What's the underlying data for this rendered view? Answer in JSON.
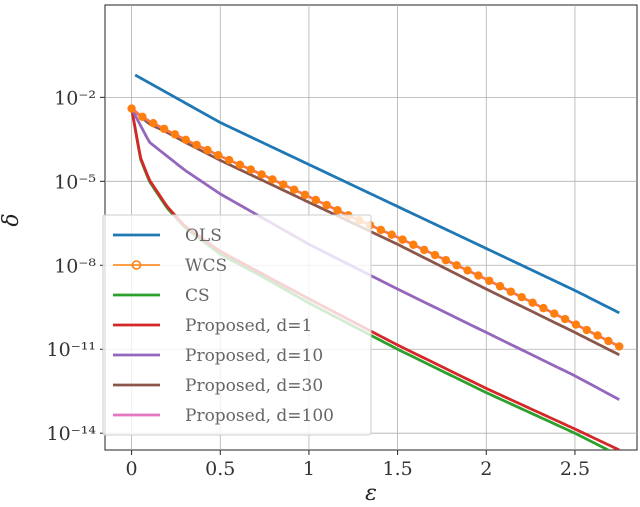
{
  "chart_data": {
    "type": "line",
    "title": "",
    "xlabel": "ε",
    "ylabel": "δ",
    "xlim": [
      -0.15,
      2.85
    ],
    "ylim_log10": [
      -14.6,
      1.3
    ],
    "yscale": "log",
    "grid": true,
    "legend_position": "lower-left",
    "x_ticks": [
      {
        "value": 0,
        "label": "0"
      },
      {
        "value": 0.5,
        "label": "0.5"
      },
      {
        "value": 1,
        "label": "1"
      },
      {
        "value": 1.5,
        "label": "1.5"
      },
      {
        "value": 2,
        "label": "2"
      },
      {
        "value": 2.5,
        "label": "2.5"
      }
    ],
    "y_ticks": [
      {
        "exp": -2,
        "label": "10⁻²"
      },
      {
        "exp": -5,
        "label": "10⁻⁵"
      },
      {
        "exp": -8,
        "label": "10⁻⁸"
      },
      {
        "exp": -11,
        "label": "10⁻¹¹"
      },
      {
        "exp": -14,
        "label": "10⁻¹⁴"
      }
    ],
    "series": [
      {
        "name": "OLS",
        "color": "#1f77b4",
        "markers": false,
        "points": [
          [
            0.02,
            -1.2
          ],
          [
            0.5,
            -2.9
          ],
          [
            1.0,
            -4.4
          ],
          [
            1.5,
            -5.9
          ],
          [
            2.0,
            -7.4
          ],
          [
            2.5,
            -8.9
          ],
          [
            2.75,
            -9.7
          ]
        ]
      },
      {
        "name": "WCS",
        "color": "#ff7f0e",
        "markers": true,
        "points": [
          [
            0.0,
            -2.4
          ],
          [
            0.05,
            -2.65
          ],
          [
            0.1,
            -2.85
          ],
          [
            0.2,
            -3.18
          ],
          [
            0.3,
            -3.5
          ],
          [
            0.5,
            -4.1
          ],
          [
            0.75,
            -4.8
          ],
          [
            1.0,
            -5.55
          ],
          [
            1.25,
            -6.3
          ],
          [
            1.5,
            -7.0
          ],
          [
            1.75,
            -7.75
          ],
          [
            2.0,
            -8.5
          ],
          [
            2.25,
            -9.3
          ],
          [
            2.5,
            -10.1
          ],
          [
            2.75,
            -10.9
          ]
        ]
      },
      {
        "name": "CS",
        "color": "#2ca02c",
        "markers": false,
        "points": [
          [
            0.0,
            -2.4
          ],
          [
            0.05,
            -4.2
          ],
          [
            0.1,
            -5.0
          ],
          [
            0.2,
            -5.95
          ],
          [
            0.3,
            -6.65
          ],
          [
            0.5,
            -7.6
          ],
          [
            0.75,
            -8.45
          ],
          [
            1.0,
            -9.35
          ],
          [
            1.5,
            -11.0
          ],
          [
            2.0,
            -12.55
          ],
          [
            2.5,
            -14.0
          ],
          [
            2.75,
            -14.8
          ]
        ]
      },
      {
        "name": "Proposed, d=1",
        "color": "#d62728",
        "markers": false,
        "points": [
          [
            0.0,
            -2.4
          ],
          [
            0.05,
            -4.15
          ],
          [
            0.1,
            -4.95
          ],
          [
            0.2,
            -5.9
          ],
          [
            0.3,
            -6.6
          ],
          [
            0.5,
            -7.5
          ],
          [
            0.75,
            -8.35
          ],
          [
            1.0,
            -9.2
          ],
          [
            1.5,
            -10.85
          ],
          [
            2.0,
            -12.4
          ],
          [
            2.5,
            -13.85
          ],
          [
            2.75,
            -14.6
          ]
        ]
      },
      {
        "name": "Proposed, d=10",
        "color": "#9467bd",
        "markers": false,
        "points": [
          [
            0.0,
            -2.4
          ],
          [
            0.1,
            -3.6
          ],
          [
            0.2,
            -4.1
          ],
          [
            0.3,
            -4.6
          ],
          [
            0.5,
            -5.45
          ],
          [
            0.75,
            -6.35
          ],
          [
            1.0,
            -7.25
          ],
          [
            1.5,
            -8.85
          ],
          [
            2.0,
            -10.4
          ],
          [
            2.5,
            -11.95
          ],
          [
            2.75,
            -12.8
          ]
        ]
      },
      {
        "name": "Proposed, d=30",
        "color": "#8c564b",
        "markers": false,
        "points": [
          [
            0.0,
            -2.4
          ],
          [
            0.1,
            -2.95
          ],
          [
            0.2,
            -3.25
          ],
          [
            0.3,
            -3.6
          ],
          [
            0.5,
            -4.25
          ],
          [
            0.75,
            -5.0
          ],
          [
            1.0,
            -5.75
          ],
          [
            1.5,
            -7.25
          ],
          [
            2.0,
            -8.85
          ],
          [
            2.5,
            -10.4
          ],
          [
            2.75,
            -11.2
          ]
        ]
      },
      {
        "name": "Proposed, d=100",
        "color": "#e377c2",
        "markers": false,
        "points": [
          [
            0.0,
            -2.4
          ],
          [
            0.05,
            -2.65
          ],
          [
            0.1,
            -2.85
          ],
          [
            0.2,
            -3.18
          ],
          [
            0.3,
            -3.5
          ],
          [
            0.5,
            -4.1
          ],
          [
            0.75,
            -4.8
          ],
          [
            1.0,
            -5.55
          ],
          [
            1.25,
            -6.3
          ],
          [
            1.5,
            -7.0
          ],
          [
            1.75,
            -7.75
          ],
          [
            2.0,
            -8.5
          ],
          [
            2.25,
            -9.3
          ],
          [
            2.5,
            -10.1
          ],
          [
            2.75,
            -10.9
          ]
        ]
      }
    ]
  }
}
